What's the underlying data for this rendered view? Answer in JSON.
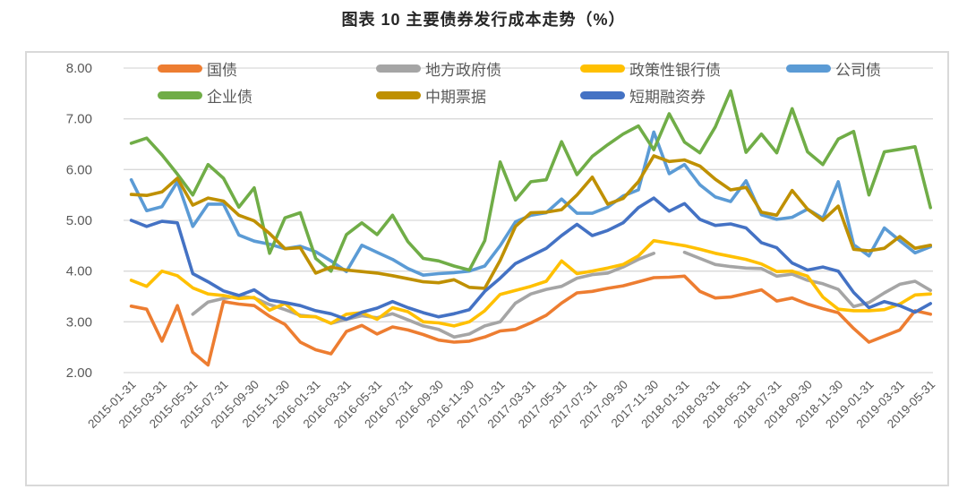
{
  "title": "图表 10 主要债券发行成本走势（%）",
  "chart_data": {
    "type": "line",
    "title": "图表 10 主要债券发行成本走势（%）",
    "xlabel": "",
    "ylabel": "",
    "ylim": [
      2.0,
      8.0
    ],
    "yticks": [
      "8.00",
      "7.00",
      "6.00",
      "5.00",
      "4.00",
      "3.00",
      "2.00"
    ],
    "grid": "horizontal",
    "legend_position": "top",
    "tick_label_step": 2,
    "categories": [
      "2015-01-31",
      "2015-02-28",
      "2015-03-31",
      "2015-04-30",
      "2015-05-31",
      "2015-06-30",
      "2015-07-31",
      "2015-08-31",
      "2015-09-30",
      "2015-10-31",
      "2015-11-30",
      "2015-12-31",
      "2016-01-31",
      "2016-02-29",
      "2016-03-31",
      "2016-04-30",
      "2016-05-31",
      "2016-06-30",
      "2016-07-31",
      "2016-08-31",
      "2016-09-30",
      "2016-10-31",
      "2016-11-30",
      "2016-12-31",
      "2017-01-31",
      "2017-02-28",
      "2017-03-31",
      "2017-04-30",
      "2017-05-31",
      "2017-06-30",
      "2017-07-31",
      "2017-08-31",
      "2017-09-30",
      "2017-10-31",
      "2017-11-30",
      "2017-12-31",
      "2018-01-31",
      "2018-02-28",
      "2018-03-31",
      "2018-04-30",
      "2018-05-31",
      "2018-06-30",
      "2018-07-31",
      "2018-08-31",
      "2018-09-30",
      "2018-10-31",
      "2018-11-30",
      "2018-12-31",
      "2019-01-31",
      "2019-02-28",
      "2019-03-31",
      "2019-04-30",
      "2019-05-31"
    ],
    "series": [
      {
        "name": "国债",
        "color": "#ED7D31",
        "values": [
          3.31,
          3.25,
          2.62,
          3.32,
          2.4,
          2.15,
          3.4,
          3.35,
          3.32,
          3.11,
          2.95,
          2.6,
          2.45,
          2.37,
          2.81,
          2.93,
          2.76,
          2.9,
          2.84,
          2.75,
          2.64,
          2.6,
          2.62,
          2.7,
          2.82,
          2.85,
          2.98,
          3.13,
          3.37,
          3.57,
          3.6,
          3.66,
          3.71,
          3.79,
          3.87,
          3.88,
          3.9,
          3.6,
          3.47,
          3.49,
          3.56,
          3.63,
          3.41,
          3.47,
          3.35,
          3.26,
          3.18,
          2.87,
          2.6,
          2.72,
          2.84,
          3.22,
          3.15
        ]
      },
      {
        "name": "地方政府债",
        "color": "#A5A5A5",
        "values": [
          null,
          null,
          null,
          null,
          3.15,
          3.39,
          3.46,
          3.51,
          3.47,
          3.34,
          3.24,
          3.13,
          3.1,
          2.97,
          3.05,
          3.12,
          3.08,
          3.16,
          3.04,
          2.92,
          2.85,
          2.7,
          2.76,
          2.92,
          3.0,
          3.37,
          3.55,
          3.64,
          3.7,
          3.86,
          3.93,
          3.96,
          4.08,
          4.23,
          4.35,
          null,
          4.37,
          4.25,
          4.13,
          4.09,
          4.06,
          4.05,
          3.9,
          3.94,
          3.82,
          3.75,
          3.64,
          3.3,
          3.38,
          3.57,
          3.74,
          3.8,
          3.62
        ]
      },
      {
        "name": "政策性银行债",
        "color": "#FFC000",
        "values": [
          3.82,
          3.7,
          4.0,
          3.91,
          3.67,
          3.55,
          3.52,
          3.46,
          3.48,
          3.23,
          3.36,
          3.11,
          3.1,
          2.97,
          3.15,
          3.18,
          3.05,
          3.28,
          3.2,
          3.0,
          2.98,
          2.92,
          3.0,
          3.22,
          3.54,
          3.62,
          3.7,
          3.8,
          4.2,
          3.95,
          4.0,
          4.06,
          4.13,
          4.3,
          4.6,
          4.55,
          4.5,
          4.43,
          4.35,
          4.29,
          4.23,
          4.14,
          3.99,
          4.0,
          3.9,
          3.49,
          3.25,
          3.22,
          3.22,
          3.24,
          3.35,
          3.53,
          3.55
        ]
      },
      {
        "name": "公司债",
        "color": "#5B9BD5",
        "values": [
          5.8,
          5.19,
          5.27,
          5.76,
          4.88,
          5.32,
          5.32,
          4.71,
          4.59,
          4.53,
          4.44,
          4.49,
          4.38,
          4.2,
          3.99,
          4.51,
          4.37,
          4.23,
          4.05,
          3.92,
          3.95,
          3.97,
          4.0,
          4.1,
          4.5,
          4.97,
          5.1,
          5.15,
          5.42,
          5.14,
          5.14,
          5.26,
          5.48,
          5.6,
          6.74,
          5.92,
          6.1,
          5.7,
          5.46,
          5.37,
          5.78,
          5.11,
          5.02,
          5.06,
          5.22,
          5.04,
          5.76,
          4.52,
          4.3,
          4.85,
          4.6,
          4.36,
          4.48
        ]
      },
      {
        "name": "企业债",
        "color": "#70AD47",
        "values": [
          6.52,
          6.62,
          6.29,
          5.91,
          5.5,
          6.1,
          5.83,
          5.26,
          5.64,
          4.35,
          5.05,
          5.15,
          4.25,
          4.0,
          4.72,
          4.95,
          4.72,
          5.1,
          4.58,
          4.25,
          4.2,
          4.1,
          4.02,
          4.6,
          6.15,
          5.4,
          5.76,
          5.8,
          6.55,
          5.9,
          6.26,
          6.49,
          6.7,
          6.86,
          6.39,
          7.1,
          6.54,
          6.33,
          6.84,
          7.55,
          6.34,
          6.7,
          6.33,
          7.2,
          6.35,
          6.1,
          6.6,
          6.75,
          5.5,
          6.35,
          6.4,
          6.45,
          5.25
        ]
      },
      {
        "name": "中期票据",
        "color": "#BF9000",
        "values": [
          5.51,
          5.49,
          5.56,
          5.83,
          5.3,
          5.44,
          5.38,
          5.1,
          4.99,
          4.74,
          4.44,
          4.46,
          3.96,
          4.08,
          4.02,
          3.99,
          3.96,
          3.91,
          3.85,
          3.79,
          3.77,
          3.83,
          3.68,
          3.66,
          4.21,
          4.88,
          5.15,
          5.16,
          5.21,
          5.5,
          5.85,
          5.32,
          5.43,
          5.76,
          6.27,
          6.16,
          6.19,
          6.07,
          5.81,
          5.6,
          5.65,
          5.16,
          5.1,
          5.59,
          5.22,
          5.0,
          5.28,
          4.43,
          4.4,
          4.45,
          4.68,
          4.45,
          4.51
        ]
      },
      {
        "name": "短期融资券",
        "color": "#4472C4",
        "values": [
          5.0,
          4.88,
          4.98,
          4.95,
          3.95,
          3.79,
          3.61,
          3.52,
          3.63,
          3.43,
          3.38,
          3.32,
          3.22,
          3.16,
          3.05,
          3.19,
          3.27,
          3.4,
          3.28,
          3.18,
          3.1,
          3.16,
          3.24,
          3.6,
          3.86,
          4.15,
          4.3,
          4.45,
          4.7,
          4.92,
          4.7,
          4.8,
          4.95,
          5.25,
          5.44,
          5.18,
          5.33,
          5.02,
          4.9,
          4.93,
          4.85,
          4.56,
          4.46,
          4.16,
          4.02,
          4.08,
          4.0,
          3.58,
          3.28,
          3.4,
          3.32,
          3.19,
          3.36
        ]
      }
    ]
  }
}
